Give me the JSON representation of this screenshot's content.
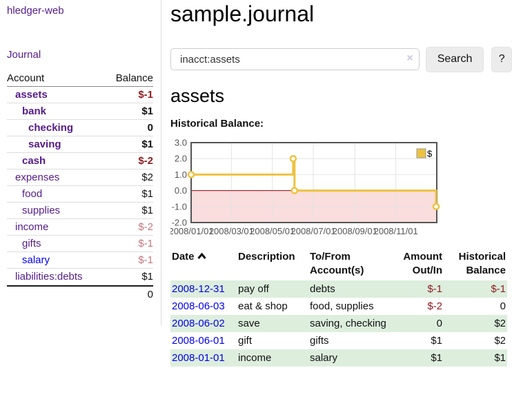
{
  "app": {
    "brand": "hledger-web",
    "nav_journal": "Journal"
  },
  "sidebar": {
    "header": {
      "account": "Account",
      "balance": "Balance"
    },
    "accounts": [
      {
        "name": "assets",
        "balance": "$-1"
      },
      {
        "name": "bank",
        "balance": "$1"
      },
      {
        "name": "checking",
        "balance": "0"
      },
      {
        "name": "saving",
        "balance": "$1"
      },
      {
        "name": "cash",
        "balance": "$-2"
      },
      {
        "name": "expenses",
        "balance": "$2"
      },
      {
        "name": "food",
        "balance": "$1"
      },
      {
        "name": "supplies",
        "balance": "$1"
      },
      {
        "name": "income",
        "balance": "$-2"
      },
      {
        "name": "gifts",
        "balance": "$-1"
      },
      {
        "name": "salary",
        "balance": "$-1"
      },
      {
        "name": "liabilities:debts",
        "balance": "$1"
      }
    ],
    "total": "0"
  },
  "header": {
    "title": "sample.journal"
  },
  "search": {
    "value": "inacct:assets",
    "clear_icon": "×",
    "button": "Search",
    "help_button": "?"
  },
  "account_page": {
    "heading": "assets",
    "chart_label": "Historical Balance:"
  },
  "chart_data": {
    "type": "line",
    "title": "Historical Balance",
    "series": [
      {
        "name": "$",
        "color": "#edc240",
        "step": true,
        "points": [
          {
            "date": "2008-01-01",
            "value": 1
          },
          {
            "date": "2008-06-01",
            "value": 2
          },
          {
            "date": "2008-06-03",
            "value": 0
          },
          {
            "date": "2008-12-31",
            "value": -1
          }
        ]
      }
    ],
    "ylim": [
      -2.0,
      3.0
    ],
    "yticks": [
      3.0,
      2.0,
      1.0,
      0.0,
      -1.0,
      -2.0
    ],
    "xlim": [
      "2008-01-01",
      "2009-01-01"
    ],
    "xticks": [
      "2008/01/01",
      "2008/03/01",
      "2008/05/01",
      "2008/07/01",
      "2008/09/01",
      "2008/11/01"
    ],
    "legend": {
      "label": "$",
      "position": "top-right"
    },
    "grid": true,
    "grid_color": "#e4e4e4",
    "border_color": "#545454",
    "tick_color": "#545454",
    "negative_region_fill": "#fadddd",
    "zero_line_color": "#8b0000"
  },
  "register": {
    "columns": [
      {
        "label": "Date",
        "sorted": "asc"
      },
      {
        "label": "Description"
      },
      {
        "label": "To/From Account(s)"
      },
      {
        "label": "Amount Out/In"
      },
      {
        "label": "Historical Balance"
      }
    ],
    "rows": [
      {
        "date": "2008-12-31",
        "description": "pay off",
        "accounts": "debts",
        "amount": "$-1",
        "balance": "$-1"
      },
      {
        "date": "2008-06-03",
        "description": "eat & shop",
        "accounts": "food, supplies",
        "amount": "$-2",
        "balance": "0"
      },
      {
        "date": "2008-06-02",
        "description": "save",
        "accounts": "saving, checking",
        "amount": "0",
        "balance": "$2"
      },
      {
        "date": "2008-06-01",
        "description": "gift",
        "accounts": "gifts",
        "amount": "$1",
        "balance": "$2"
      },
      {
        "date": "2008-01-01",
        "description": "income",
        "accounts": "salary",
        "amount": "$1",
        "balance": "$1"
      }
    ]
  }
}
